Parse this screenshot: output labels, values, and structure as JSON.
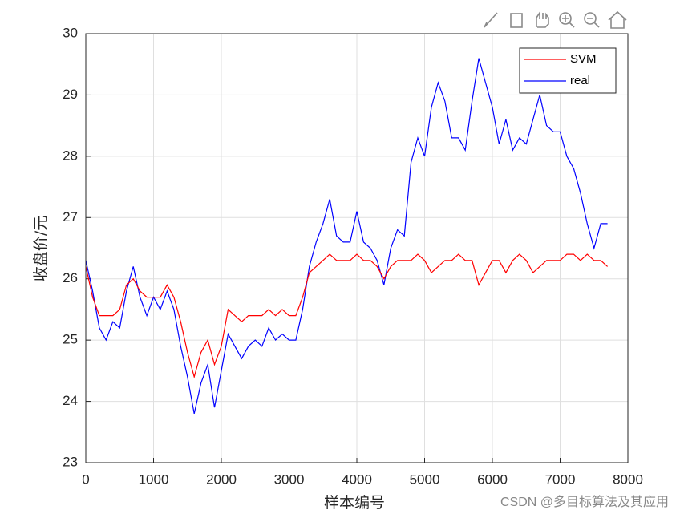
{
  "chart_data": {
    "type": "line",
    "ylabel": "收盘价/元",
    "xlabel": "样本编号",
    "x": [
      0,
      100,
      200,
      300,
      400,
      500,
      600,
      700,
      800,
      900,
      1000,
      1100,
      1200,
      1300,
      1400,
      1500,
      1600,
      1700,
      1800,
      1900,
      2000,
      2100,
      2200,
      2300,
      2400,
      2500,
      2600,
      2700,
      2800,
      2900,
      3000,
      3100,
      3200,
      3300,
      3400,
      3500,
      3600,
      3700,
      3800,
      3900,
      4000,
      4100,
      4200,
      4300,
      4400,
      4500,
      4600,
      4700,
      4800,
      4900,
      5000,
      5100,
      5200,
      5300,
      5400,
      5500,
      5600,
      5700,
      5800,
      5900,
      6000,
      6100,
      6200,
      6300,
      6400,
      6500,
      6600,
      6700,
      6800,
      6900,
      7000,
      7100,
      7200,
      7300,
      7400,
      7500,
      7600,
      7700
    ],
    "series": [
      {
        "name": "SVM",
        "color": "#ff0000",
        "values": [
          26.2,
          25.7,
          25.4,
          25.4,
          25.4,
          25.5,
          25.9,
          26.0,
          25.8,
          25.7,
          25.7,
          25.7,
          25.9,
          25.7,
          25.3,
          24.8,
          24.4,
          24.8,
          25.0,
          24.6,
          24.9,
          25.5,
          25.4,
          25.3,
          25.4,
          25.4,
          25.4,
          25.5,
          25.4,
          25.5,
          25.4,
          25.4,
          25.7,
          26.1,
          26.2,
          26.3,
          26.4,
          26.3,
          26.3,
          26.3,
          26.4,
          26.3,
          26.3,
          26.2,
          26.0,
          26.2,
          26.3,
          26.3,
          26.3,
          26.4,
          26.3,
          26.1,
          26.2,
          26.3,
          26.3,
          26.4,
          26.3,
          26.3,
          25.9,
          26.1,
          26.3,
          26.3,
          26.1,
          26.3,
          26.4,
          26.3,
          26.1,
          26.2,
          26.3,
          26.3,
          26.3,
          26.4,
          26.4,
          26.3,
          26.4,
          26.3,
          26.3,
          26.2
        ]
      },
      {
        "name": "real",
        "color": "#0000ff",
        "values": [
          26.3,
          25.8,
          25.2,
          25.0,
          25.3,
          25.2,
          25.8,
          26.2,
          25.7,
          25.4,
          25.7,
          25.5,
          25.8,
          25.5,
          24.9,
          24.4,
          23.8,
          24.3,
          24.6,
          23.9,
          24.5,
          25.1,
          24.9,
          24.7,
          24.9,
          25.0,
          24.9,
          25.2,
          25.0,
          25.1,
          25.0,
          25.0,
          25.5,
          26.2,
          26.6,
          26.9,
          27.3,
          26.7,
          26.6,
          26.6,
          27.1,
          26.6,
          26.5,
          26.3,
          25.9,
          26.5,
          26.8,
          26.7,
          27.9,
          28.3,
          28.0,
          28.8,
          29.2,
          28.9,
          28.3,
          28.3,
          28.1,
          28.9,
          29.6,
          29.2,
          28.8,
          28.2,
          28.6,
          28.1,
          28.3,
          28.2,
          28.6,
          29.0,
          28.5,
          28.4,
          28.4,
          28.0,
          27.8,
          27.4,
          26.9,
          26.5,
          26.9,
          26.9
        ]
      }
    ],
    "xlim": [
      0,
      8000
    ],
    "xticks": [
      0,
      1000,
      2000,
      3000,
      4000,
      5000,
      6000,
      7000,
      8000
    ],
    "ylim": [
      23,
      30
    ],
    "yticks": [
      23,
      24,
      25,
      26,
      27,
      28,
      29,
      30
    ],
    "grid": true,
    "legend": "top-right"
  },
  "watermark": "CSDN @多目标算法及其应用"
}
